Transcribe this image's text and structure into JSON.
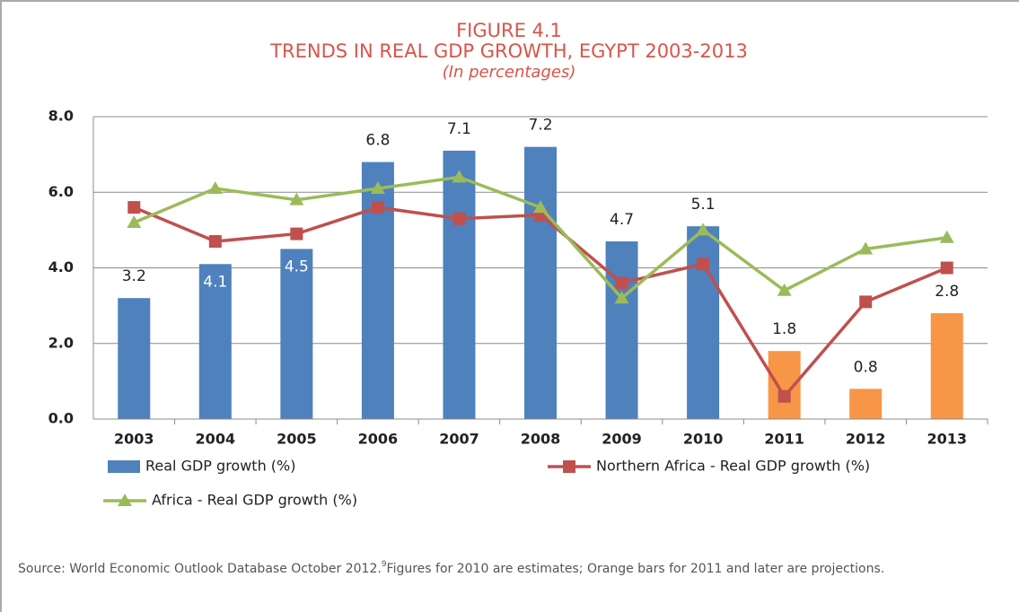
{
  "chart_data": {
    "type": "bar",
    "title": "FIGURE 4.1",
    "subtitle": "TRENDS IN REAL GDP GROWTH, EGYPT 2003-2013",
    "unit_note": "(In percentages)",
    "categories": [
      "2003",
      "2004",
      "2005",
      "2006",
      "2007",
      "2008",
      "2009",
      "2010",
      "2011",
      "2012",
      "2013"
    ],
    "ylim": [
      0,
      8
    ],
    "yticks": [
      {
        "value": 0,
        "label": "0.0"
      },
      {
        "value": 2,
        "label": "2.0"
      },
      {
        "value": 4,
        "label": "4.0"
      },
      {
        "value": 6,
        "label": "6.0"
      },
      {
        "value": 8,
        "label": "8.0"
      }
    ],
    "grid": true,
    "series": [
      {
        "name": "Real GDP growth (%)",
        "type": "bar",
        "color": "#4f81bd",
        "colors": [
          "#4f81bd",
          "#4f81bd",
          "#4f81bd",
          "#4f81bd",
          "#4f81bd",
          "#4f81bd",
          "#4f81bd",
          "#4f81bd",
          "#f79646",
          "#f79646",
          "#f79646"
        ],
        "values": [
          3.2,
          4.1,
          4.5,
          6.8,
          7.1,
          7.2,
          4.7,
          5.1,
          1.8,
          0.8,
          2.8
        ],
        "label_colors": [
          "#222222",
          "#ffffff",
          "#ffffff",
          "#222222",
          "#222222",
          "#222222",
          "#222222",
          "#222222",
          "#222222",
          "#222222",
          "#222222"
        ]
      },
      {
        "name": "Northern Africa - Real GDP growth (%)",
        "type": "line",
        "marker": "square",
        "color": "#c0504d",
        "values": [
          5.6,
          4.7,
          4.9,
          5.6,
          5.3,
          5.4,
          3.6,
          4.1,
          0.6,
          3.1,
          4.0
        ]
      },
      {
        "name": "Africa - Real GDP growth (%)",
        "type": "line",
        "marker": "triangle",
        "color": "#9bbb59",
        "values": [
          5.2,
          6.1,
          5.8,
          6.1,
          6.4,
          5.6,
          3.2,
          5.0,
          3.4,
          4.5,
          4.8
        ]
      }
    ],
    "source": "Source: World Economic Outlook Database October 2012.",
    "footnote_ref": "9",
    "source_continued": "Figures for 2010 are estimates; Orange bars for 2011 and later are projections."
  }
}
